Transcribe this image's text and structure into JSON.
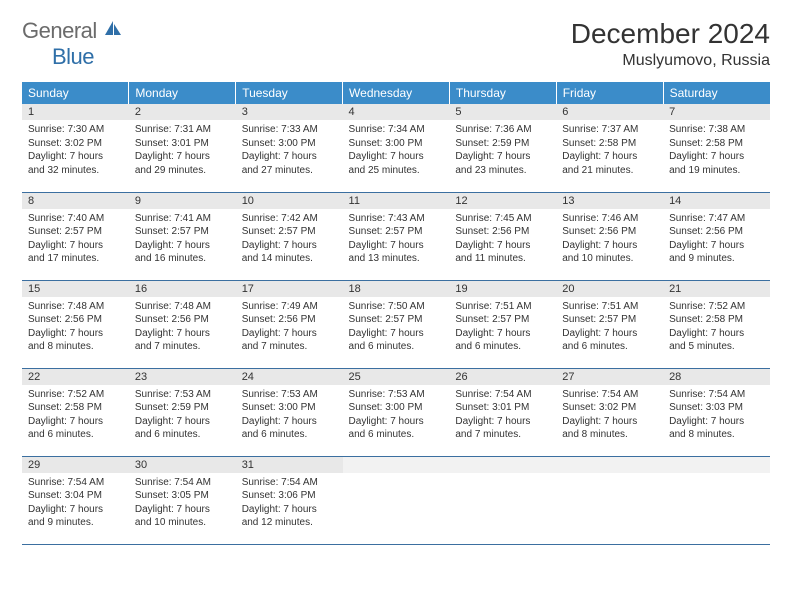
{
  "logo": {
    "general": "General",
    "blue": "Blue"
  },
  "title": "December 2024",
  "location": "Muslyumovo, Russia",
  "colors": {
    "header_bg": "#3b8cc9",
    "header_text": "#ffffff",
    "daynum_bg": "#e8e8e8",
    "row_border": "#3b6fa0",
    "logo_gray": "#6b6b6b",
    "logo_blue": "#2f6fa8"
  },
  "weekdays": [
    "Sunday",
    "Monday",
    "Tuesday",
    "Wednesday",
    "Thursday",
    "Friday",
    "Saturday"
  ],
  "days": [
    {
      "n": "1",
      "sr": "Sunrise: 7:30 AM",
      "ss": "Sunset: 3:02 PM",
      "dl1": "Daylight: 7 hours",
      "dl2": "and 32 minutes."
    },
    {
      "n": "2",
      "sr": "Sunrise: 7:31 AM",
      "ss": "Sunset: 3:01 PM",
      "dl1": "Daylight: 7 hours",
      "dl2": "and 29 minutes."
    },
    {
      "n": "3",
      "sr": "Sunrise: 7:33 AM",
      "ss": "Sunset: 3:00 PM",
      "dl1": "Daylight: 7 hours",
      "dl2": "and 27 minutes."
    },
    {
      "n": "4",
      "sr": "Sunrise: 7:34 AM",
      "ss": "Sunset: 3:00 PM",
      "dl1": "Daylight: 7 hours",
      "dl2": "and 25 minutes."
    },
    {
      "n": "5",
      "sr": "Sunrise: 7:36 AM",
      "ss": "Sunset: 2:59 PM",
      "dl1": "Daylight: 7 hours",
      "dl2": "and 23 minutes."
    },
    {
      "n": "6",
      "sr": "Sunrise: 7:37 AM",
      "ss": "Sunset: 2:58 PM",
      "dl1": "Daylight: 7 hours",
      "dl2": "and 21 minutes."
    },
    {
      "n": "7",
      "sr": "Sunrise: 7:38 AM",
      "ss": "Sunset: 2:58 PM",
      "dl1": "Daylight: 7 hours",
      "dl2": "and 19 minutes."
    },
    {
      "n": "8",
      "sr": "Sunrise: 7:40 AM",
      "ss": "Sunset: 2:57 PM",
      "dl1": "Daylight: 7 hours",
      "dl2": "and 17 minutes."
    },
    {
      "n": "9",
      "sr": "Sunrise: 7:41 AM",
      "ss": "Sunset: 2:57 PM",
      "dl1": "Daylight: 7 hours",
      "dl2": "and 16 minutes."
    },
    {
      "n": "10",
      "sr": "Sunrise: 7:42 AM",
      "ss": "Sunset: 2:57 PM",
      "dl1": "Daylight: 7 hours",
      "dl2": "and 14 minutes."
    },
    {
      "n": "11",
      "sr": "Sunrise: 7:43 AM",
      "ss": "Sunset: 2:57 PM",
      "dl1": "Daylight: 7 hours",
      "dl2": "and 13 minutes."
    },
    {
      "n": "12",
      "sr": "Sunrise: 7:45 AM",
      "ss": "Sunset: 2:56 PM",
      "dl1": "Daylight: 7 hours",
      "dl2": "and 11 minutes."
    },
    {
      "n": "13",
      "sr": "Sunrise: 7:46 AM",
      "ss": "Sunset: 2:56 PM",
      "dl1": "Daylight: 7 hours",
      "dl2": "and 10 minutes."
    },
    {
      "n": "14",
      "sr": "Sunrise: 7:47 AM",
      "ss": "Sunset: 2:56 PM",
      "dl1": "Daylight: 7 hours",
      "dl2": "and 9 minutes."
    },
    {
      "n": "15",
      "sr": "Sunrise: 7:48 AM",
      "ss": "Sunset: 2:56 PM",
      "dl1": "Daylight: 7 hours",
      "dl2": "and 8 minutes."
    },
    {
      "n": "16",
      "sr": "Sunrise: 7:48 AM",
      "ss": "Sunset: 2:56 PM",
      "dl1": "Daylight: 7 hours",
      "dl2": "and 7 minutes."
    },
    {
      "n": "17",
      "sr": "Sunrise: 7:49 AM",
      "ss": "Sunset: 2:56 PM",
      "dl1": "Daylight: 7 hours",
      "dl2": "and 7 minutes."
    },
    {
      "n": "18",
      "sr": "Sunrise: 7:50 AM",
      "ss": "Sunset: 2:57 PM",
      "dl1": "Daylight: 7 hours",
      "dl2": "and 6 minutes."
    },
    {
      "n": "19",
      "sr": "Sunrise: 7:51 AM",
      "ss": "Sunset: 2:57 PM",
      "dl1": "Daylight: 7 hours",
      "dl2": "and 6 minutes."
    },
    {
      "n": "20",
      "sr": "Sunrise: 7:51 AM",
      "ss": "Sunset: 2:57 PM",
      "dl1": "Daylight: 7 hours",
      "dl2": "and 6 minutes."
    },
    {
      "n": "21",
      "sr": "Sunrise: 7:52 AM",
      "ss": "Sunset: 2:58 PM",
      "dl1": "Daylight: 7 hours",
      "dl2": "and 5 minutes."
    },
    {
      "n": "22",
      "sr": "Sunrise: 7:52 AM",
      "ss": "Sunset: 2:58 PM",
      "dl1": "Daylight: 7 hours",
      "dl2": "and 6 minutes."
    },
    {
      "n": "23",
      "sr": "Sunrise: 7:53 AM",
      "ss": "Sunset: 2:59 PM",
      "dl1": "Daylight: 7 hours",
      "dl2": "and 6 minutes."
    },
    {
      "n": "24",
      "sr": "Sunrise: 7:53 AM",
      "ss": "Sunset: 3:00 PM",
      "dl1": "Daylight: 7 hours",
      "dl2": "and 6 minutes."
    },
    {
      "n": "25",
      "sr": "Sunrise: 7:53 AM",
      "ss": "Sunset: 3:00 PM",
      "dl1": "Daylight: 7 hours",
      "dl2": "and 6 minutes."
    },
    {
      "n": "26",
      "sr": "Sunrise: 7:54 AM",
      "ss": "Sunset: 3:01 PM",
      "dl1": "Daylight: 7 hours",
      "dl2": "and 7 minutes."
    },
    {
      "n": "27",
      "sr": "Sunrise: 7:54 AM",
      "ss": "Sunset: 3:02 PM",
      "dl1": "Daylight: 7 hours",
      "dl2": "and 8 minutes."
    },
    {
      "n": "28",
      "sr": "Sunrise: 7:54 AM",
      "ss": "Sunset: 3:03 PM",
      "dl1": "Daylight: 7 hours",
      "dl2": "and 8 minutes."
    },
    {
      "n": "29",
      "sr": "Sunrise: 7:54 AM",
      "ss": "Sunset: 3:04 PM",
      "dl1": "Daylight: 7 hours",
      "dl2": "and 9 minutes."
    },
    {
      "n": "30",
      "sr": "Sunrise: 7:54 AM",
      "ss": "Sunset: 3:05 PM",
      "dl1": "Daylight: 7 hours",
      "dl2": "and 10 minutes."
    },
    {
      "n": "31",
      "sr": "Sunrise: 7:54 AM",
      "ss": "Sunset: 3:06 PM",
      "dl1": "Daylight: 7 hours",
      "dl2": "and 12 minutes."
    }
  ],
  "layout": {
    "first_weekday_index": 0,
    "total_days": 31,
    "rows": 5,
    "cols": 7
  }
}
